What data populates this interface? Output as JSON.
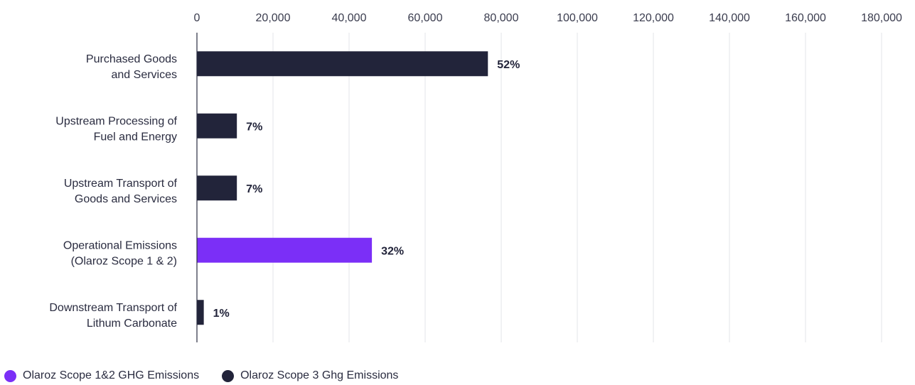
{
  "chart_data": {
    "type": "bar",
    "orientation": "horizontal",
    "categories": [
      [
        "Purchased Goods",
        "and Services"
      ],
      [
        "Upstream Processing of",
        "Fuel and Energy"
      ],
      [
        "Upstream Transport of",
        "Goods and Services"
      ],
      [
        "Operational Emissions",
        "(Olaroz Scope 1 & 2)"
      ],
      [
        "Downstream Transport of",
        "Lithum Carbonate"
      ]
    ],
    "values": [
      76500,
      10500,
      10500,
      46000,
      1800
    ],
    "value_labels": [
      "52%",
      "7%",
      "7%",
      "32%",
      "1%"
    ],
    "bar_series": [
      "scope3",
      "scope3",
      "scope3",
      "scope12",
      "scope3"
    ],
    "xlim": [
      0,
      180000
    ],
    "x_ticks": [
      0,
      20000,
      40000,
      60000,
      80000,
      100000,
      120000,
      140000,
      160000,
      180000
    ],
    "x_tick_labels": [
      "0",
      "20,000",
      "40,000",
      "60,000",
      "80,000",
      "100,000",
      "120,000",
      "140,000",
      "160,000",
      "180,000"
    ],
    "x_axis_position": "top",
    "grid": true,
    "legend_position": "bottom-left",
    "series": [
      {
        "key": "scope12",
        "name": "Olaroz Scope 1&2 GHG Emissions",
        "color": "#7b2ff7"
      },
      {
        "key": "scope3",
        "name": "Olaroz Scope 3 Ghg Emissions",
        "color": "#22243a"
      }
    ]
  }
}
